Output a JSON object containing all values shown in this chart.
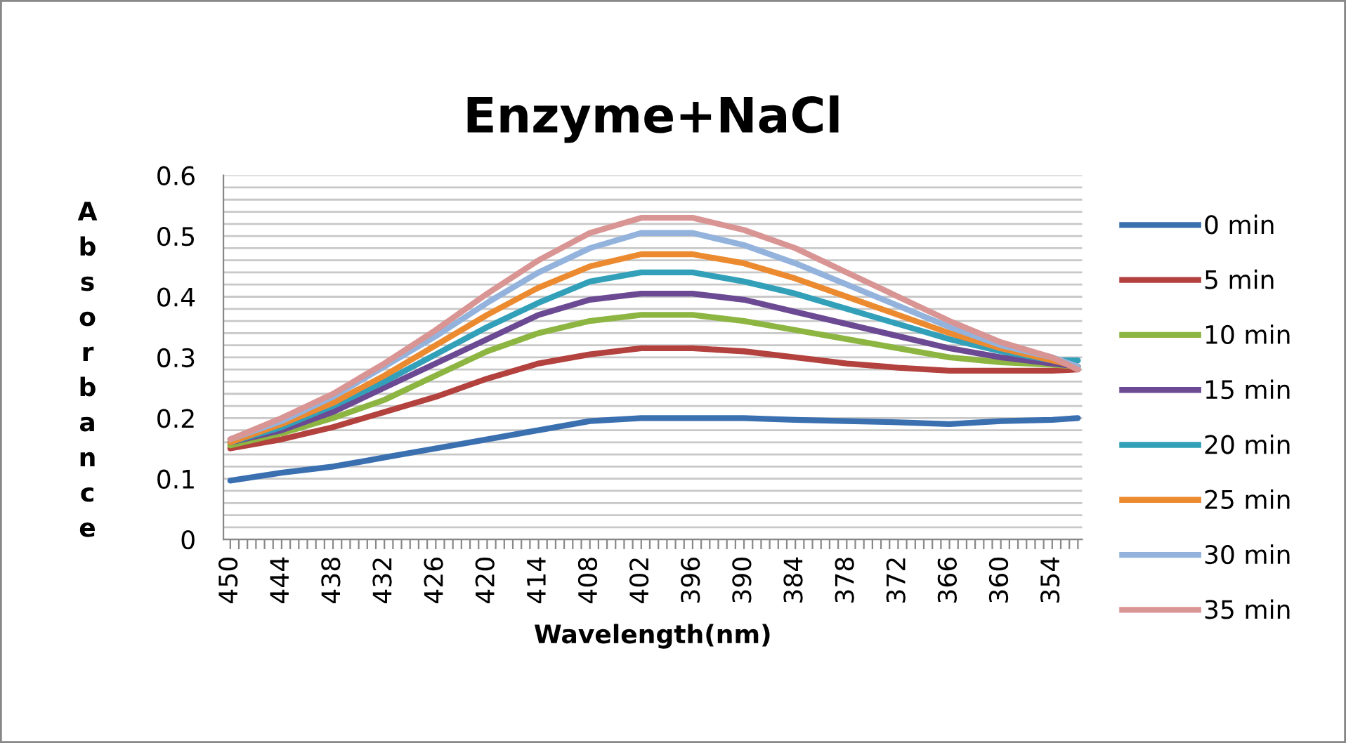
{
  "chart_data": {
    "type": "line",
    "title": "Enzyme+NaCl",
    "xlabel": "Wavelength(nm)",
    "ylabel": "Absorbance",
    "xlim": [
      450.8,
      350.5
    ],
    "ylim": [
      0,
      0.6
    ],
    "xticks": [
      450,
      {
        "value": 449,
        "label": null
      },
      {
        "value": 448,
        "label": null
      },
      {
        "value": 447,
        "label": null
      },
      {
        "value": 446,
        "label": null
      },
      {
        "value": 445,
        "label": null
      },
      444,
      {
        "value": 443,
        "label": null
      },
      {
        "value": 442,
        "label": null
      },
      {
        "value": 441,
        "label": null
      },
      {
        "value": 440,
        "label": null
      },
      {
        "value": 439,
        "label": null
      },
      438,
      {
        "value": 437,
        "label": null
      },
      {
        "value": 436,
        "label": null
      },
      {
        "value": 435,
        "label": null
      },
      {
        "value": 434,
        "label": null
      },
      {
        "value": 433,
        "label": null
      },
      432,
      {
        "value": 431,
        "label": null
      },
      {
        "value": 430,
        "label": null
      },
      {
        "value": 429,
        "label": null
      },
      {
        "value": 428,
        "label": null
      },
      {
        "value": 427,
        "label": null
      },
      426,
      {
        "value": 425,
        "label": null
      },
      {
        "value": 424,
        "label": null
      },
      {
        "value": 423,
        "label": null
      },
      {
        "value": 422,
        "label": null
      },
      {
        "value": 421,
        "label": null
      },
      420,
      {
        "value": 419,
        "label": null
      },
      {
        "value": 418,
        "label": null
      },
      {
        "value": 417,
        "label": null
      },
      {
        "value": 416,
        "label": null
      },
      {
        "value": 415,
        "label": null
      },
      414,
      {
        "value": 413,
        "label": null
      },
      {
        "value": 412,
        "label": null
      },
      {
        "value": 411,
        "label": null
      },
      {
        "value": 410,
        "label": null
      },
      {
        "value": 409,
        "label": null
      },
      408,
      {
        "value": 407,
        "label": null
      },
      {
        "value": 406,
        "label": null
      },
      {
        "value": 405,
        "label": null
      },
      {
        "value": 404,
        "label": null
      },
      {
        "value": 403,
        "label": null
      },
      402,
      {
        "value": 401,
        "label": null
      },
      {
        "value": 400,
        "label": null
      },
      {
        "value": 399,
        "label": null
      },
      {
        "value": 398,
        "label": null
      },
      {
        "value": 397,
        "label": null
      },
      396,
      {
        "value": 395,
        "label": null
      },
      {
        "value": 394,
        "label": null
      },
      {
        "value": 393,
        "label": null
      },
      {
        "value": 392,
        "label": null
      },
      {
        "value": 391,
        "label": null
      },
      390,
      {
        "value": 389,
        "label": null
      },
      {
        "value": 388,
        "label": null
      },
      {
        "value": 387,
        "label": null
      },
      {
        "value": 386,
        "label": null
      },
      {
        "value": 385,
        "label": null
      },
      384,
      {
        "value": 383,
        "label": null
      },
      {
        "value": 382,
        "label": null
      },
      {
        "value": 381,
        "label": null
      },
      {
        "value": 380,
        "label": null
      },
      {
        "value": 379,
        "label": null
      },
      378,
      {
        "value": 377,
        "label": null
      },
      {
        "value": 376,
        "label": null
      },
      {
        "value": 375,
        "label": null
      },
      {
        "value": 374,
        "label": null
      },
      {
        "value": 373,
        "label": null
      },
      372,
      {
        "value": 371,
        "label": null
      },
      {
        "value": 370,
        "label": null
      },
      {
        "value": 369,
        "label": null
      },
      {
        "value": 368,
        "label": null
      },
      {
        "value": 367,
        "label": null
      },
      366,
      {
        "value": 365,
        "label": null
      },
      {
        "value": 364,
        "label": null
      },
      {
        "value": 363,
        "label": null
      },
      {
        "value": 362,
        "label": null
      },
      {
        "value": 361,
        "label": null
      },
      360,
      {
        "value": 359,
        "label": null
      },
      {
        "value": 358,
        "label": null
      },
      {
        "value": 357,
        "label": null
      },
      {
        "value": 356,
        "label": null
      },
      {
        "value": 355,
        "label": null
      },
      354,
      {
        "value": 353,
        "label": null
      },
      {
        "value": 352,
        "label": null
      },
      {
        "value": 351,
        "label": null
      }
    ],
    "yticks": [
      0,
      {
        "value": 0.02,
        "label": null
      },
      {
        "value": 0.04,
        "label": null
      },
      {
        "value": 0.06,
        "label": null
      },
      {
        "value": 0.08,
        "label": null
      },
      0.1,
      {
        "value": 0.12,
        "label": null
      },
      {
        "value": 0.14,
        "label": null
      },
      {
        "value": 0.16,
        "label": null
      },
      {
        "value": 0.18,
        "label": null
      },
      0.2,
      {
        "value": 0.22,
        "label": null
      },
      {
        "value": 0.24,
        "label": null
      },
      {
        "value": 0.26,
        "label": null
      },
      {
        "value": 0.28,
        "label": null
      },
      0.3,
      {
        "value": 0.32,
        "label": null
      },
      {
        "value": 0.34,
        "label": null
      },
      {
        "value": 0.36,
        "label": null
      },
      {
        "value": 0.38,
        "label": null
      },
      0.4,
      {
        "value": 0.42,
        "label": null
      },
      {
        "value": 0.44,
        "label": null
      },
      {
        "value": 0.46,
        "label": null
      },
      {
        "value": 0.48,
        "label": null
      },
      0.5,
      {
        "value": 0.52,
        "label": null
      },
      {
        "value": 0.54,
        "label": null
      },
      {
        "value": 0.56,
        "label": null
      },
      {
        "value": 0.58,
        "label": null
      },
      0.6
    ],
    "grid": "y",
    "legend": "right",
    "marker": "none",
    "line_style": "solid",
    "x": [
      450,
      444,
      438,
      432,
      426,
      420,
      414,
      408,
      402,
      396,
      390,
      384,
      378,
      372,
      366,
      360,
      354,
      351
    ],
    "series": [
      {
        "name": "0 min",
        "color": "#3a6fb0",
        "values": [
          0.097,
          0.11,
          0.12,
          0.135,
          0.15,
          0.165,
          0.18,
          0.195,
          0.2,
          0.2,
          0.2,
          0.197,
          0.195,
          0.193,
          0.19,
          0.195,
          0.197,
          0.2
        ]
      },
      {
        "name": "5 min",
        "color": "#b3413d",
        "values": [
          0.15,
          0.165,
          0.185,
          0.21,
          0.235,
          0.265,
          0.29,
          0.305,
          0.315,
          0.315,
          0.31,
          0.3,
          0.29,
          0.283,
          0.278,
          0.278,
          0.278,
          0.28
        ]
      },
      {
        "name": "10 min",
        "color": "#8db542",
        "values": [
          0.155,
          0.175,
          0.2,
          0.23,
          0.27,
          0.31,
          0.34,
          0.36,
          0.37,
          0.37,
          0.36,
          0.345,
          0.33,
          0.315,
          0.3,
          0.292,
          0.288,
          0.285
        ]
      },
      {
        "name": "15 min",
        "color": "#6b4a93",
        "values": [
          0.16,
          0.18,
          0.21,
          0.25,
          0.29,
          0.33,
          0.37,
          0.395,
          0.405,
          0.405,
          0.395,
          0.375,
          0.355,
          0.335,
          0.315,
          0.3,
          0.29,
          0.285
        ]
      },
      {
        "name": "20 min",
        "color": "#31a0b8",
        "values": [
          0.16,
          0.185,
          0.22,
          0.26,
          0.305,
          0.35,
          0.39,
          0.425,
          0.44,
          0.44,
          0.425,
          0.405,
          0.38,
          0.355,
          0.33,
          0.31,
          0.295,
          0.295
        ]
      },
      {
        "name": "25 min",
        "color": "#ec8a30",
        "values": [
          0.16,
          0.19,
          0.225,
          0.27,
          0.32,
          0.37,
          0.415,
          0.45,
          0.47,
          0.47,
          0.455,
          0.43,
          0.4,
          0.37,
          0.34,
          0.315,
          0.295,
          0.285
        ]
      },
      {
        "name": "30 min",
        "color": "#93b3dd",
        "values": [
          0.165,
          0.195,
          0.235,
          0.285,
          0.335,
          0.39,
          0.44,
          0.48,
          0.505,
          0.505,
          0.485,
          0.455,
          0.42,
          0.385,
          0.35,
          0.32,
          0.3,
          0.285
        ]
      },
      {
        "name": "35 min",
        "color": "#d99594",
        "values": [
          0.165,
          0.2,
          0.24,
          0.29,
          0.345,
          0.405,
          0.46,
          0.505,
          0.53,
          0.53,
          0.51,
          0.48,
          0.44,
          0.4,
          0.36,
          0.325,
          0.3,
          0.28
        ]
      }
    ]
  }
}
